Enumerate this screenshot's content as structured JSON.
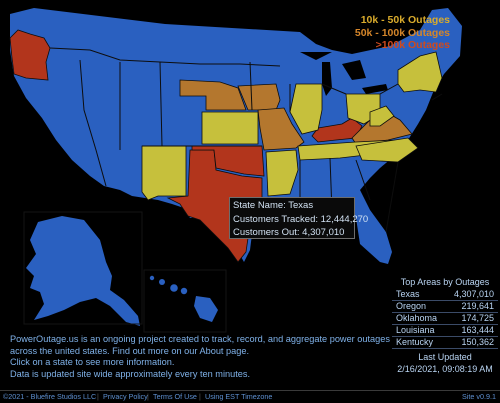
{
  "colors": {
    "background": "#000000",
    "no_data": "#2a60c0",
    "tier_10k_50k": "#c6c03c",
    "tier_50k_100k": "#b4772e",
    "tier_over_100k": "#b2351c",
    "state_border": "#0d0d0d"
  },
  "legend": [
    {
      "label": "10k - 50k Outages",
      "color": "#d9ab2c"
    },
    {
      "label": "50k - 100k Outages",
      "color": "#d5862a"
    },
    {
      "label": ">100k Outages",
      "color": "#cf4a1e"
    }
  ],
  "map": {
    "state_tiers": {
      "Oregon": "over_100k",
      "Texas": "over_100k",
      "Oklahoma": "over_100k",
      "Louisiana": "over_100k",
      "Kentucky": "over_100k",
      "Nebraska": "50k_100k",
      "Missouri": "50k_100k",
      "Virginia": "50k_100k",
      "Iowa": "50k_100k",
      "New Mexico": "10k_50k",
      "Kansas": "10k_50k",
      "Arkansas": "10k_50k",
      "Illinois": "10k_50k",
      "Ohio": "10k_50k",
      "Tennessee": "10k_50k",
      "North Carolina": "10k_50k",
      "West Virginia": "10k_50k",
      "New York": "10k_50k"
    }
  },
  "tooltip": {
    "state_name": "State Name: Texas",
    "customers_tracked": "Customers Tracked: 12,444,270",
    "customers_out": "Customers Out: 4,307,010"
  },
  "top_areas": {
    "title": "Top Areas by Outages",
    "rows": [
      {
        "name": "Texas",
        "value": "4,307,010"
      },
      {
        "name": "Oregon",
        "value": "219,641"
      },
      {
        "name": "Oklahoma",
        "value": "174,725"
      },
      {
        "name": "Louisiana",
        "value": "163,444"
      },
      {
        "name": "Kentucky",
        "value": "150,362"
      }
    ],
    "last_updated_label": "Last Updated",
    "last_updated_value": "2/16/2021, 09:08:19 AM"
  },
  "about": {
    "line1": "PowerOutage.us is an ongoing project created to track, record, and aggregate power outages",
    "line2": "across the united states. Find out more on our About page.",
    "line3": "Click on a state to see more information.",
    "line4": "Data is updated site wide approximately every ten minutes."
  },
  "footer": {
    "copyright": "©2021 - Bluefire Studios LLC",
    "privacy": "Privacy Policy",
    "terms": "Terms Of Use",
    "timezone": "Using EST Timezone",
    "version": "Site v0.9.1"
  }
}
